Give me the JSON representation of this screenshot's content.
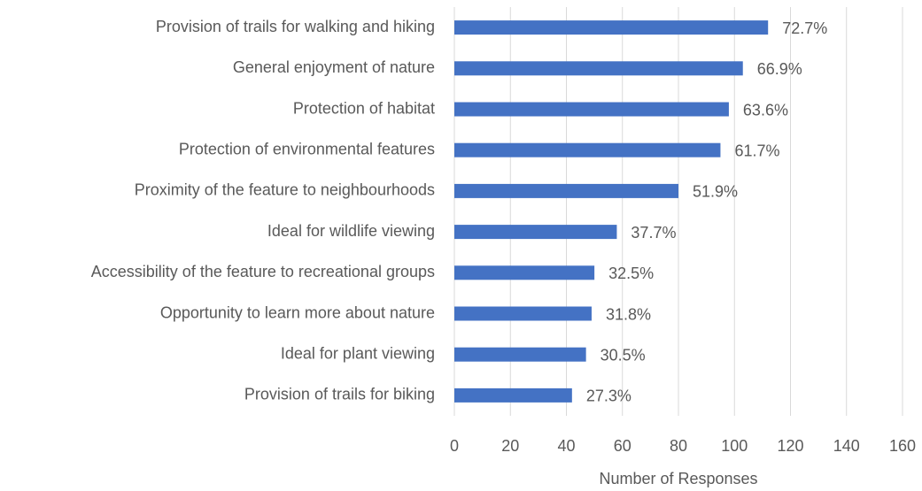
{
  "chart_data": {
    "type": "hbar",
    "x_label": "Number of Responses",
    "categories": [
      "Provision of trails for walking and hiking",
      "General enjoyment of nature",
      "Protection of habitat",
      "Protection of environmental features",
      "Proximity of the feature to neighbourhoods",
      "Ideal for wildlife viewing",
      "Accessibility of the feature to recreational groups",
      "Opportunity to learn more about nature",
      "Ideal for plant viewing ",
      "Provision of trails for biking"
    ],
    "values": [
      112,
      103,
      98,
      95,
      80,
      58,
      50,
      49,
      47,
      42
    ],
    "value_labels": [
      "72.7%",
      "66.9%",
      "63.6%",
      "61.7%",
      "51.9%",
      "37.7%",
      "32.5%",
      "31.8%",
      "30.5%",
      "27.3%"
    ],
    "color": "#4472c4",
    "xlim": [
      0,
      160
    ],
    "xticks": [
      0,
      20,
      40,
      60,
      80,
      100,
      120,
      140,
      160
    ],
    "grid": true
  }
}
